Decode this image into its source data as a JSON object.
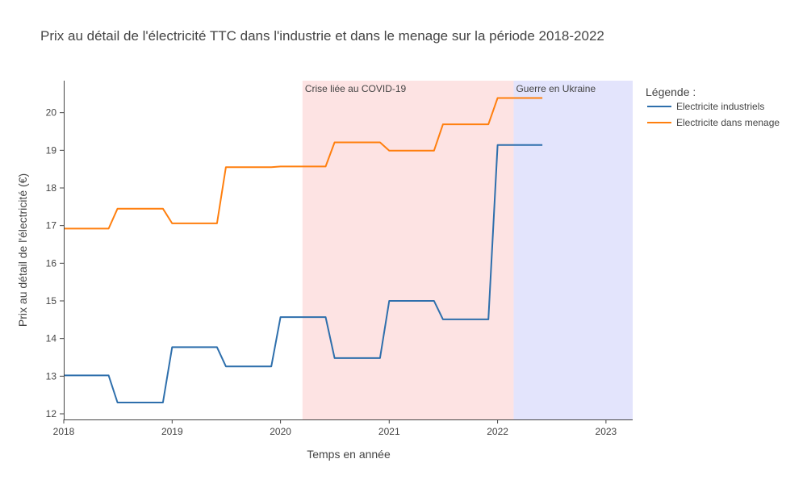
{
  "chart_data": {
    "type": "line",
    "title": "Prix au détail de l'électricité TTC dans l'industrie et dans le menage sur la période 2018-2022",
    "xlabel": "Temps en année",
    "ylabel": "Prix au détail de l'électricité (€)",
    "xlim": [
      "2018-01-01",
      "2023-04-01"
    ],
    "ylim": [
      11.85,
      20.85
    ],
    "x_ticks": [
      "2018",
      "2019",
      "2020",
      "2021",
      "2022",
      "2023"
    ],
    "y_ticks": [
      12,
      13,
      14,
      15,
      16,
      17,
      18,
      19,
      20
    ],
    "grid": false,
    "legend": {
      "title": "Légende :",
      "placement": "right"
    },
    "shaded_regions": [
      {
        "label": "Crise liée au COVID-19",
        "start": "2020-03-15",
        "end": "2022-02-24",
        "color": "#fde3e3"
      },
      {
        "label": "Guerre en Ukraine",
        "start": "2022-02-24",
        "end": "2023-04-01",
        "color": "#e3e4fc"
      }
    ],
    "series": [
      {
        "name": "Electricite industriels",
        "color": "#2e6fac",
        "x": [
          "2018-01-01",
          "2018-06-01",
          "2018-07-01",
          "2018-12-01",
          "2019-01-01",
          "2019-06-01",
          "2019-07-01",
          "2019-12-01",
          "2020-01-01",
          "2020-06-01",
          "2020-07-01",
          "2020-12-01",
          "2021-01-01",
          "2021-06-01",
          "2021-07-01",
          "2021-12-01",
          "2022-01-01",
          "2022-06-01"
        ],
        "y": [
          13.02,
          13.02,
          12.3,
          12.3,
          13.77,
          13.77,
          13.26,
          13.26,
          14.57,
          14.57,
          13.48,
          13.48,
          15.0,
          15.0,
          14.51,
          14.51,
          19.14,
          19.14
        ]
      },
      {
        "name": "Electricite dans menage",
        "color": "#ff7f0e",
        "x": [
          "2018-01-01",
          "2018-06-01",
          "2018-07-01",
          "2018-12-01",
          "2019-01-01",
          "2019-06-01",
          "2019-07-01",
          "2019-12-01",
          "2020-01-01",
          "2020-06-01",
          "2020-07-01",
          "2020-12-01",
          "2021-01-01",
          "2021-06-01",
          "2021-07-01",
          "2021-12-01",
          "2022-01-01",
          "2022-06-01"
        ],
        "y": [
          16.92,
          16.92,
          17.45,
          17.45,
          17.06,
          17.06,
          18.55,
          18.55,
          18.57,
          18.57,
          19.21,
          19.21,
          18.99,
          18.99,
          19.69,
          19.69,
          20.39,
          20.39
        ]
      }
    ]
  }
}
